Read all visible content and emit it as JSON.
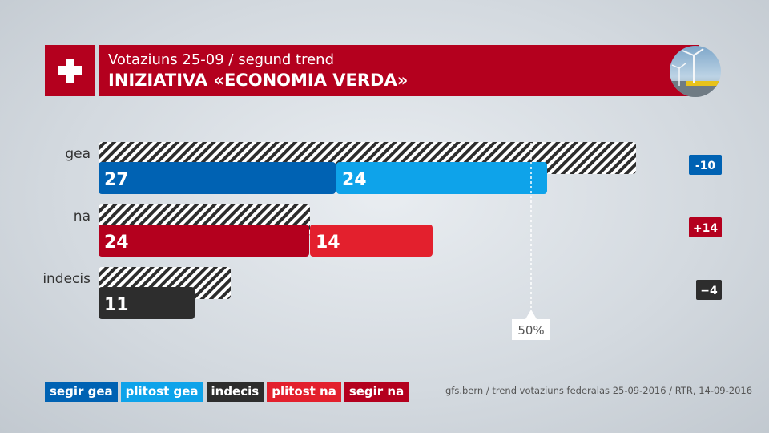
{
  "header": {
    "subtitle": "Votaziuns 25-09 / segund trend",
    "title": "INIZIATIVA «ECONOMIA VERDA»",
    "flag_icon": "swiss-cross-icon",
    "image_icon": "wind-turbine-icon"
  },
  "chart_data": {
    "type": "bar",
    "stacked": true,
    "orientation": "horizontal",
    "categories": [
      "gea",
      "na",
      "indecis"
    ],
    "series": [
      {
        "name": "segir gea",
        "values": [
          27,
          null,
          null
        ],
        "color": "#0062b3"
      },
      {
        "name": "plitost gea",
        "values": [
          24,
          null,
          null
        ],
        "color": "#0ea3ea"
      },
      {
        "name": "indecis",
        "values": [
          null,
          null,
          11
        ],
        "color": "#2d2d2d"
      },
      {
        "name": "plitost na",
        "values": [
          null,
          14,
          null
        ],
        "color": "#e3202d"
      },
      {
        "name": "segir na",
        "values": [
          null,
          24,
          null
        ],
        "color": "#b4001e"
      }
    ],
    "previous_values": [
      61,
      24,
      15
    ],
    "changes": [
      "-10",
      "+14",
      "−4"
    ],
    "change_colors": [
      "#0062b3",
      "#b4001e",
      "#2d2d2d"
    ],
    "reference_line": {
      "value": 50,
      "label": "50%"
    }
  },
  "legend": [
    {
      "label": "segir gea",
      "color": "#0062b3"
    },
    {
      "label": "plitost gea",
      "color": "#0ea3ea"
    },
    {
      "label": "indecis",
      "color": "#2d2d2d"
    },
    {
      "label": "plitost na",
      "color": "#e3202d"
    },
    {
      "label": "segir na",
      "color": "#b4001e"
    }
  ],
  "source": "gfs.bern / trend votaziuns federalas 25-09-2016 / RTR, 14-09-2016"
}
